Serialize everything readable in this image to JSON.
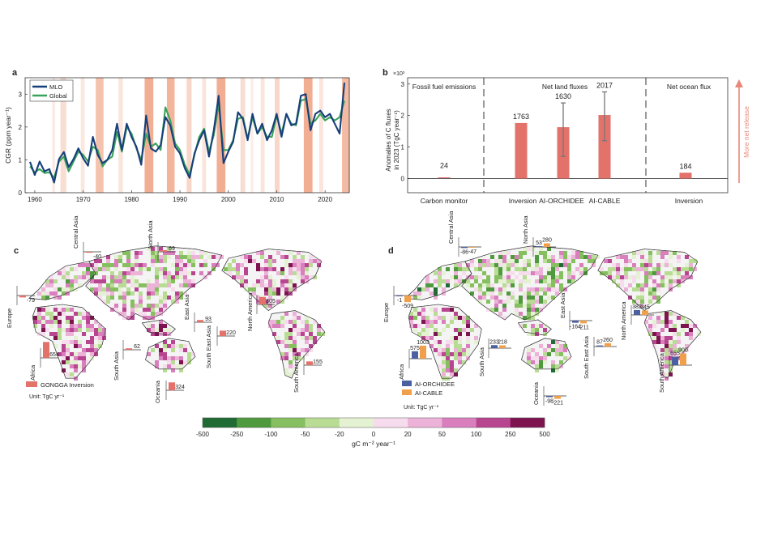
{
  "panel_a": {
    "letter": "a",
    "ylabel": "CGR (ppm year⁻¹)",
    "legend": [
      "MLO",
      "Global"
    ]
  },
  "panel_b": {
    "letter": "b",
    "multiplier": "×10³",
    "ylabel_line1": "Anomalies of C fluxes",
    "ylabel_line2": "in 2023 (TgC year⁻¹)",
    "arrow_label": "More net release",
    "sections": [
      "Fossil fuel emissions",
      "Net land fluxes",
      "Net ocean flux"
    ]
  },
  "panel_c": {
    "letter": "c",
    "legend": "GONGGA Inversion",
    "unit": "Unit: TgC yr⁻¹"
  },
  "panel_d": {
    "letter": "d",
    "legend": [
      "AI-ORCHIDEE",
      "AI-CABLE"
    ],
    "unit": "Unit: TgC yr⁻¹"
  },
  "colorbar": {
    "ticks": [
      "-500",
      "-250",
      "-100",
      "-50",
      "-20",
      "0",
      "20",
      "50",
      "100",
      "250",
      "500"
    ],
    "label": "gC m⁻² year⁻¹",
    "colors": [
      "#1f6b33",
      "#4f9a3e",
      "#86bf5f",
      "#b9dc95",
      "#e4f1d2",
      "#f6dced",
      "#ecb2d8",
      "#d97fbd",
      "#b8458f",
      "#7d1450"
    ]
  },
  "chart_data": [
    {
      "type": "line",
      "panel": "a",
      "xlim": [
        1958,
        2025
      ],
      "ylim": [
        0,
        3.5
      ],
      "xticks": [
        1960,
        1970,
        1980,
        1990,
        2000,
        2010,
        2020
      ],
      "yticks": [
        0,
        1,
        2,
        3
      ],
      "x": [
        1959,
        1960,
        1961,
        1962,
        1963,
        1964,
        1965,
        1966,
        1967,
        1968,
        1969,
        1970,
        1971,
        1972,
        1973,
        1974,
        1975,
        1976,
        1977,
        1978,
        1979,
        1980,
        1981,
        1982,
        1983,
        1984,
        1985,
        1986,
        1987,
        1988,
        1989,
        1990,
        1991,
        1992,
        1993,
        1994,
        1995,
        1996,
        1997,
        1998,
        1999,
        2000,
        2001,
        2002,
        2003,
        2004,
        2005,
        2006,
        2007,
        2008,
        2009,
        2010,
        2011,
        2012,
        2013,
        2014,
        2015,
        2016,
        2017,
        2018,
        2019,
        2020,
        2021,
        2022,
        2023,
        2024
      ],
      "series": [
        {
          "name": "MLO",
          "color": "#173f7a",
          "values": [
            0.94,
            0.54,
            0.95,
            0.65,
            0.72,
            0.31,
            1.02,
            1.24,
            0.78,
            1.02,
            1.35,
            1.05,
            0.82,
            1.7,
            1.15,
            0.9,
            1.0,
            1.3,
            2.1,
            1.3,
            2.1,
            1.7,
            1.4,
            0.85,
            2.35,
            1.35,
            1.25,
            1.45,
            2.3,
            2.05,
            1.4,
            1.2,
            0.75,
            0.45,
            1.2,
            1.6,
            1.9,
            1.1,
            1.9,
            2.95,
            0.9,
            1.25,
            1.55,
            2.45,
            2.25,
            1.6,
            2.4,
            1.8,
            2.1,
            1.6,
            1.9,
            2.4,
            1.7,
            2.4,
            2.05,
            2.1,
            2.95,
            3.0,
            1.9,
            2.4,
            2.5,
            2.3,
            2.4,
            2.1,
            1.8,
            3.35
          ]
        },
        {
          "name": "Global",
          "color": "#3aa35b",
          "values": [
            0.8,
            0.62,
            0.72,
            0.6,
            0.62,
            0.45,
            0.95,
            1.1,
            0.65,
            0.95,
            1.25,
            1.15,
            0.95,
            1.4,
            1.3,
            0.8,
            1.0,
            1.1,
            1.85,
            1.25,
            2.0,
            1.8,
            1.35,
            1.0,
            1.8,
            1.4,
            1.5,
            1.3,
            2.6,
            2.2,
            1.5,
            1.3,
            0.85,
            0.55,
            1.15,
            1.7,
            1.95,
            1.25,
            1.75,
            2.7,
            1.3,
            1.3,
            1.6,
            2.25,
            2.3,
            1.65,
            2.3,
            1.8,
            2.0,
            1.7,
            1.7,
            2.35,
            1.8,
            2.4,
            2.1,
            2.05,
            2.8,
            2.85,
            2.1,
            2.2,
            2.4,
            2.2,
            2.3,
            2.2,
            2.3,
            2.8
          ]
        }
      ]
    },
    {
      "type": "bar",
      "panel": "b",
      "ylim": [
        -0.45,
        3.2
      ],
      "yticks": [
        0,
        1,
        2,
        3
      ],
      "categories": [
        "Carbon monitor",
        "Inversion",
        "AI-ORCHIDEE",
        "AI-CABLE",
        "Inversion"
      ],
      "values": [
        0.024,
        1.763,
        1.63,
        2.017,
        0.184
      ],
      "labels": [
        "24",
        "1763",
        "1630",
        "2017",
        "184"
      ],
      "errors": [
        null,
        null,
        [
          0.7,
          2.4
        ],
        [
          1.2,
          2.75
        ],
        null
      ]
    },
    {
      "type": "bar",
      "panel": "c",
      "series": [
        {
          "name": "GONGGA Inversion"
        }
      ],
      "regions": [
        {
          "region": "Central Asia",
          "values": [
            -40
          ]
        },
        {
          "region": "North Asia",
          "values": [
            69
          ]
        },
        {
          "region": "Europe",
          "values": [
            -79
          ]
        },
        {
          "region": "Africa",
          "values": [
            654
          ]
        },
        {
          "region": "East Asia",
          "values": [
            93
          ]
        },
        {
          "region": "South East Asia",
          "values": [
            220
          ]
        },
        {
          "region": "South Asia",
          "values": [
            62
          ]
        },
        {
          "region": "Oceania",
          "values": [
            324
          ]
        },
        {
          "region": "North America",
          "values": [
            305
          ]
        },
        {
          "region": "South America",
          "values": [
            155
          ]
        }
      ]
    },
    {
      "type": "bar",
      "panel": "d",
      "series": [
        {
          "name": "AI-ORCHIDEE"
        },
        {
          "name": "AI-CABLE"
        }
      ],
      "regions": [
        {
          "region": "Central Asia",
          "values": [
            -86,
            -47
          ]
        },
        {
          "region": "North Asia",
          "values": [
            53,
            280
          ]
        },
        {
          "region": "Europe",
          "values": [
            -1,
            -509
          ]
        },
        {
          "region": "Africa",
          "values": [
            575,
            1003
          ]
        },
        {
          "region": "South Asia",
          "values": [
            233,
            218
          ]
        },
        {
          "region": "East Asia",
          "values": [
            -164,
            -211
          ]
        },
        {
          "region": "South East Asia",
          "values": [
            87,
            260
          ]
        },
        {
          "region": "Oceania",
          "values": [
            -98,
            -221
          ]
        },
        {
          "region": "North America",
          "values": [
            382,
            345
          ]
        },
        {
          "region": "South America",
          "values": [
            655,
            900
          ]
        }
      ]
    }
  ]
}
